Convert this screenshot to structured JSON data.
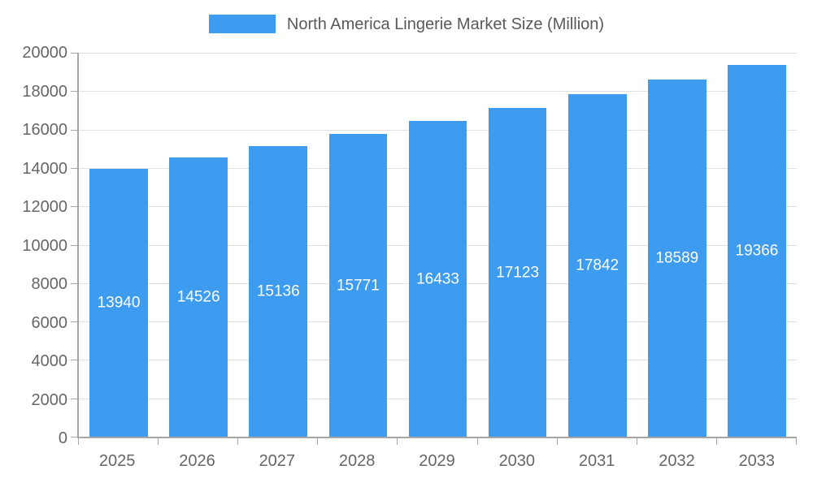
{
  "chart_data": {
    "type": "bar",
    "title": "North America Lingerie Market Size (Million)",
    "categories": [
      "2025",
      "2026",
      "2027",
      "2028",
      "2029",
      "2030",
      "2031",
      "2032",
      "2033"
    ],
    "values": [
      13940,
      14526,
      15136,
      15771,
      16433,
      17123,
      17842,
      18589,
      19366
    ],
    "xlabel": "",
    "ylabel": "",
    "ylim": [
      0,
      20000
    ],
    "ytick_step": 2000,
    "grid": true,
    "legend_position": "top-center",
    "value_labels": "inside-center-white"
  },
  "colors": {
    "accent": "#3D9CF0",
    "grid": "#e0e0e0",
    "axis": "#a6a6a6",
    "tick_text": "#666666",
    "legend_text": "#595959",
    "value_label_text": "#ffffff",
    "background": "#ffffff"
  }
}
